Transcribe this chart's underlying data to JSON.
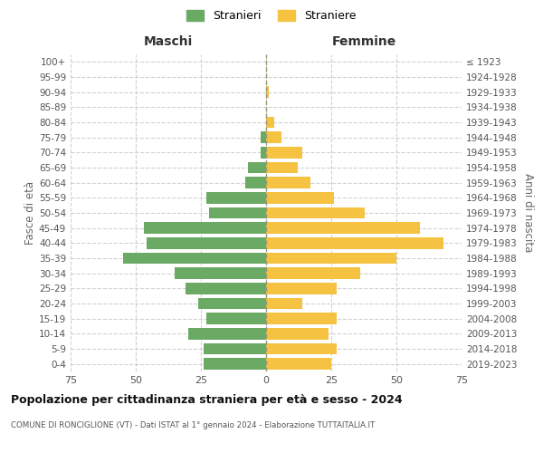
{
  "age_groups": [
    "0-4",
    "5-9",
    "10-14",
    "15-19",
    "20-24",
    "25-29",
    "30-34",
    "35-39",
    "40-44",
    "45-49",
    "50-54",
    "55-59",
    "60-64",
    "65-69",
    "70-74",
    "75-79",
    "80-84",
    "85-89",
    "90-94",
    "95-99",
    "100+"
  ],
  "birth_years": [
    "2019-2023",
    "2014-2018",
    "2009-2013",
    "2004-2008",
    "1999-2003",
    "1994-1998",
    "1989-1993",
    "1984-1988",
    "1979-1983",
    "1974-1978",
    "1969-1973",
    "1964-1968",
    "1959-1963",
    "1954-1958",
    "1949-1953",
    "1944-1948",
    "1939-1943",
    "1934-1938",
    "1929-1933",
    "1924-1928",
    "≤ 1923"
  ],
  "maschi": [
    24,
    24,
    30,
    23,
    26,
    31,
    35,
    55,
    46,
    47,
    22,
    23,
    8,
    7,
    2,
    2,
    0,
    0,
    0,
    0,
    0
  ],
  "femmine": [
    25,
    27,
    24,
    27,
    14,
    27,
    36,
    50,
    68,
    59,
    38,
    26,
    17,
    12,
    14,
    6,
    3,
    0,
    1,
    0,
    0
  ],
  "male_color": "#6aaa64",
  "female_color": "#f5c242",
  "title": "Popolazione per cittadinanza straniera per età e sesso - 2024",
  "subtitle": "COMUNE DI RONCIGLIONE (VT) - Dati ISTAT al 1° gennaio 2024 - Elaborazione TUTTAITALIA.IT",
  "xlabel_left": "Maschi",
  "xlabel_right": "Femmine",
  "ylabel_left": "Fasce di età",
  "ylabel_right": "Anni di nascita",
  "xlim": 75,
  "legend_stranieri": "Stranieri",
  "legend_straniere": "Straniere",
  "background_color": "#ffffff",
  "grid_color": "#cccccc"
}
